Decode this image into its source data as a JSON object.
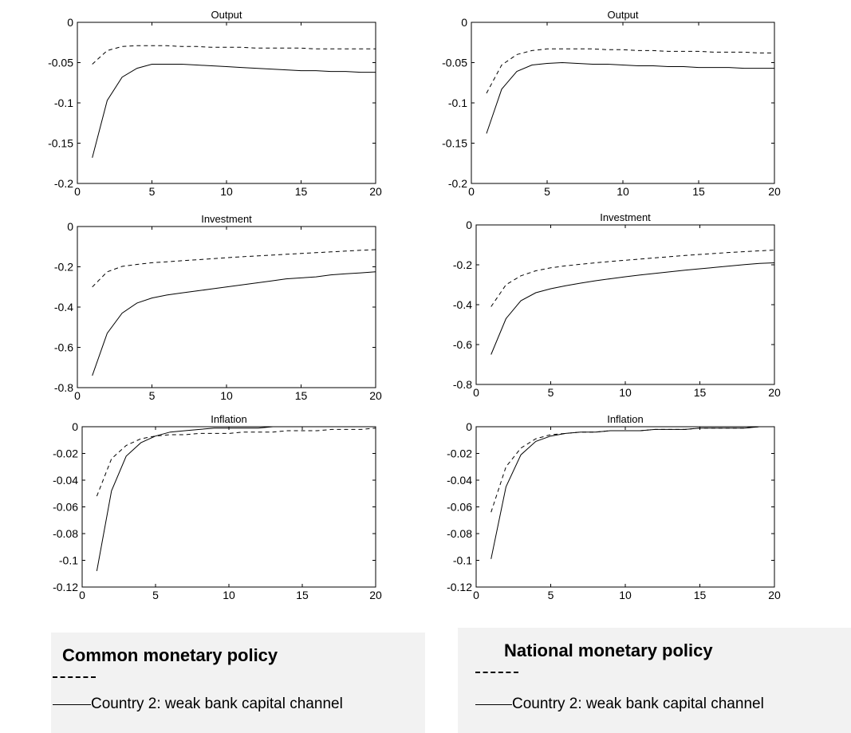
{
  "chart_data": [
    {
      "type": "line",
      "title": "Output",
      "xlim": [
        0,
        20
      ],
      "ylim": [
        -0.2,
        0
      ],
      "xticks": [
        0,
        5,
        10,
        15,
        20
      ],
      "yticks": [
        0,
        -0.05,
        -0.1,
        -0.15,
        -0.2
      ],
      "ytick_labels": [
        "0",
        "-0.05",
        "-0.1",
        "-0.15",
        "-0.2"
      ],
      "x": [
        1,
        2,
        3,
        4,
        5,
        6,
        7,
        8,
        9,
        10,
        11,
        12,
        13,
        14,
        15,
        16,
        17,
        18,
        19,
        20
      ],
      "series": [
        {
          "style": "dashed",
          "values": [
            -0.052,
            -0.035,
            -0.03,
            -0.029,
            -0.029,
            -0.029,
            -0.03,
            -0.03,
            -0.031,
            -0.031,
            -0.031,
            -0.032,
            -0.032,
            -0.032,
            -0.032,
            -0.033,
            -0.033,
            -0.033,
            -0.033,
            -0.033
          ]
        },
        {
          "style": "solid",
          "values": [
            -0.168,
            -0.097,
            -0.068,
            -0.057,
            -0.052,
            -0.052,
            -0.052,
            -0.053,
            -0.054,
            -0.055,
            -0.056,
            -0.057,
            -0.058,
            -0.059,
            -0.06,
            -0.06,
            -0.061,
            -0.061,
            -0.062,
            -0.062
          ]
        }
      ]
    },
    {
      "type": "line",
      "title": "Output",
      "xlim": [
        0,
        20
      ],
      "ylim": [
        -0.2,
        0
      ],
      "xticks": [
        0,
        5,
        10,
        15,
        20
      ],
      "yticks": [
        0,
        -0.05,
        -0.1,
        -0.15,
        -0.2
      ],
      "ytick_labels": [
        "0",
        "-0.05",
        "-0.1",
        "-0.15",
        "-0.2"
      ],
      "x": [
        1,
        2,
        3,
        4,
        5,
        6,
        7,
        8,
        9,
        10,
        11,
        12,
        13,
        14,
        15,
        16,
        17,
        18,
        19,
        20
      ],
      "series": [
        {
          "style": "dashed",
          "values": [
            -0.088,
            -0.053,
            -0.04,
            -0.035,
            -0.033,
            -0.033,
            -0.033,
            -0.033,
            -0.034,
            -0.034,
            -0.035,
            -0.035,
            -0.036,
            -0.036,
            -0.036,
            -0.037,
            -0.037,
            -0.037,
            -0.038,
            -0.038
          ]
        },
        {
          "style": "solid",
          "values": [
            -0.138,
            -0.083,
            -0.061,
            -0.053,
            -0.051,
            -0.05,
            -0.051,
            -0.052,
            -0.052,
            -0.053,
            -0.054,
            -0.054,
            -0.055,
            -0.055,
            -0.056,
            -0.056,
            -0.056,
            -0.057,
            -0.057,
            -0.057
          ]
        }
      ]
    },
    {
      "type": "line",
      "title": "Investment",
      "xlim": [
        0,
        20
      ],
      "ylim": [
        -0.8,
        0
      ],
      "xticks": [
        0,
        5,
        10,
        15,
        20
      ],
      "yticks": [
        0,
        -0.2,
        -0.4,
        -0.6,
        -0.8
      ],
      "ytick_labels": [
        "0",
        "-0.2",
        "-0.4",
        "-0.6",
        "-0.8"
      ],
      "x": [
        1,
        2,
        3,
        4,
        5,
        6,
        7,
        8,
        9,
        10,
        11,
        12,
        13,
        14,
        15,
        16,
        17,
        18,
        19,
        20
      ],
      "series": [
        {
          "style": "dashed",
          "values": [
            -0.3,
            -0.225,
            -0.198,
            -0.188,
            -0.18,
            -0.175,
            -0.17,
            -0.165,
            -0.16,
            -0.155,
            -0.15,
            -0.146,
            -0.142,
            -0.138,
            -0.134,
            -0.13,
            -0.126,
            -0.122,
            -0.118,
            -0.115
          ]
        },
        {
          "style": "solid",
          "values": [
            -0.74,
            -0.53,
            -0.43,
            -0.38,
            -0.355,
            -0.34,
            -0.33,
            -0.32,
            -0.31,
            -0.3,
            -0.29,
            -0.28,
            -0.27,
            -0.26,
            -0.255,
            -0.25,
            -0.24,
            -0.235,
            -0.23,
            -0.225
          ]
        }
      ]
    },
    {
      "type": "line",
      "title": "Investment",
      "xlim": [
        0,
        20
      ],
      "ylim": [
        -0.8,
        0
      ],
      "xticks": [
        0,
        5,
        10,
        15,
        20
      ],
      "yticks": [
        0,
        -0.2,
        -0.4,
        -0.6,
        -0.8
      ],
      "ytick_labels": [
        "0",
        "-0.2",
        "-0.4",
        "-0.6",
        "-0.8"
      ],
      "x": [
        1,
        2,
        3,
        4,
        5,
        6,
        7,
        8,
        9,
        10,
        11,
        12,
        13,
        14,
        15,
        16,
        17,
        18,
        19,
        20
      ],
      "series": [
        {
          "style": "dashed",
          "values": [
            -0.41,
            -0.3,
            -0.255,
            -0.23,
            -0.215,
            -0.205,
            -0.197,
            -0.19,
            -0.183,
            -0.177,
            -0.171,
            -0.165,
            -0.159,
            -0.153,
            -0.148,
            -0.143,
            -0.138,
            -0.134,
            -0.13,
            -0.126
          ]
        },
        {
          "style": "solid",
          "values": [
            -0.65,
            -0.47,
            -0.38,
            -0.34,
            -0.32,
            -0.305,
            -0.292,
            -0.28,
            -0.27,
            -0.26,
            -0.251,
            -0.243,
            -0.235,
            -0.227,
            -0.22,
            -0.213,
            -0.206,
            -0.199,
            -0.193,
            -0.19
          ]
        }
      ]
    },
    {
      "type": "line",
      "title": "Inflation",
      "xlim": [
        0,
        20
      ],
      "ylim": [
        -0.12,
        0
      ],
      "xticks": [
        0,
        5,
        10,
        15,
        20
      ],
      "yticks": [
        0,
        -0.02,
        -0.04,
        -0.06,
        -0.08,
        -0.1,
        -0.12
      ],
      "ytick_labels": [
        "0",
        "-0.02",
        "-0.04",
        "-0.06",
        "-0.08",
        "-0.1",
        "-0.12"
      ],
      "x": [
        1,
        2,
        3,
        4,
        5,
        6,
        7,
        8,
        9,
        10,
        11,
        12,
        13,
        14,
        15,
        16,
        17,
        18,
        19,
        20
      ],
      "series": [
        {
          "style": "dashed",
          "values": [
            -0.052,
            -0.024,
            -0.014,
            -0.009,
            -0.007,
            -0.006,
            -0.006,
            -0.005,
            -0.005,
            -0.005,
            -0.004,
            -0.004,
            -0.004,
            -0.003,
            -0.003,
            -0.003,
            -0.002,
            -0.002,
            -0.002,
            -0.001
          ]
        },
        {
          "style": "solid",
          "values": [
            -0.108,
            -0.048,
            -0.022,
            -0.012,
            -0.007,
            -0.004,
            -0.003,
            -0.002,
            -0.001,
            -0.001,
            -0.001,
            -0.001,
            0,
            0,
            0,
            0,
            0,
            0,
            0,
            0
          ]
        }
      ]
    },
    {
      "type": "line",
      "title": "Inflation",
      "xlim": [
        0,
        20
      ],
      "ylim": [
        -0.12,
        0
      ],
      "xticks": [
        0,
        5,
        10,
        15,
        20
      ],
      "yticks": [
        0,
        -0.02,
        -0.04,
        -0.06,
        -0.08,
        -0.1,
        -0.12
      ],
      "ytick_labels": [
        "0",
        "-0.02",
        "-0.04",
        "-0.06",
        "-0.08",
        "-0.1",
        "-0.12"
      ],
      "x": [
        1,
        2,
        3,
        4,
        5,
        6,
        7,
        8,
        9,
        10,
        11,
        12,
        13,
        14,
        15,
        16,
        17,
        18,
        19,
        20
      ],
      "series": [
        {
          "style": "dashed",
          "values": [
            -0.064,
            -0.03,
            -0.016,
            -0.009,
            -0.006,
            -0.005,
            -0.004,
            -0.004,
            -0.003,
            -0.003,
            -0.003,
            -0.002,
            -0.002,
            -0.002,
            -0.001,
            -0.001,
            -0.001,
            -0.001,
            0,
            0
          ]
        },
        {
          "style": "solid",
          "values": [
            -0.099,
            -0.045,
            -0.021,
            -0.011,
            -0.007,
            -0.005,
            -0.004,
            -0.004,
            -0.003,
            -0.003,
            -0.003,
            -0.002,
            -0.002,
            -0.002,
            -0.001,
            -0.001,
            -0.001,
            -0.001,
            0,
            0
          ]
        }
      ]
    }
  ],
  "legends": [
    {
      "title": "Common monetary policy",
      "dashed_label": "",
      "solid_label": "Country 2: weak bank capital channel"
    },
    {
      "title": "National monetary policy",
      "dashed_label": "",
      "solid_label": "Country 2: weak bank capital channel"
    }
  ]
}
